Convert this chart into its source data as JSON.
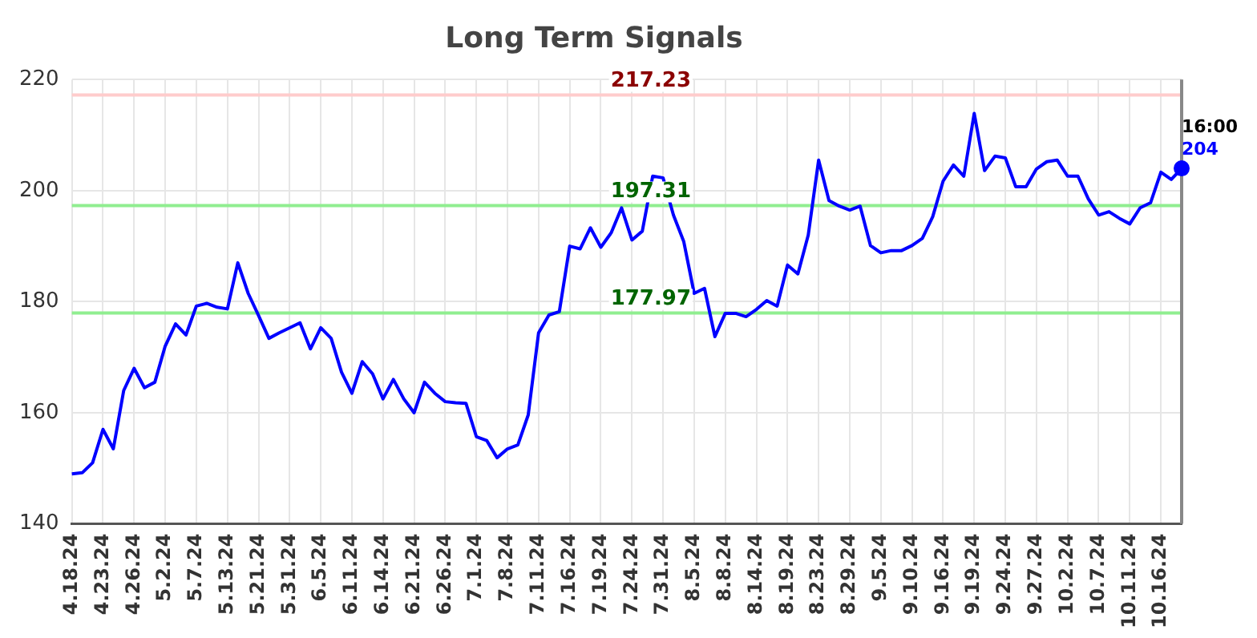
{
  "chart_data": {
    "type": "line",
    "title": "Long Term Signals",
    "categories": [
      "4.18.24",
      null,
      null,
      "4.23.24",
      null,
      null,
      "4.26.24",
      null,
      null,
      "5.2.24",
      null,
      null,
      "5.7.24",
      null,
      null,
      "5.13.24",
      null,
      null,
      "5.21.24",
      null,
      null,
      "5.31.24",
      null,
      null,
      "6.5.24",
      null,
      null,
      "6.11.24",
      null,
      null,
      "6.14.24",
      null,
      null,
      "6.21.24",
      null,
      null,
      "6.26.24",
      null,
      null,
      "7.1.24",
      null,
      null,
      "7.8.24",
      null,
      null,
      "7.11.24",
      null,
      null,
      "7.16.24",
      null,
      null,
      "7.19.24",
      null,
      null,
      "7.24.24",
      null,
      null,
      "7.31.24",
      null,
      null,
      "8.5.24",
      null,
      null,
      "8.8.24",
      null,
      null,
      "8.14.24",
      null,
      null,
      "8.19.24",
      null,
      null,
      "8.23.24",
      null,
      null,
      "8.29.24",
      null,
      null,
      "9.5.24",
      null,
      null,
      "9.10.24",
      null,
      null,
      "9.16.24",
      null,
      null,
      "9.19.24",
      null,
      null,
      "9.24.24",
      null,
      null,
      "9.27.24",
      null,
      null,
      "10.2.24",
      null,
      null,
      "10.7.24",
      null,
      null,
      "10.11.24",
      null,
      null,
      "10.16.24",
      null,
      null
    ],
    "series": [
      {
        "color": "#0000ff",
        "values": [
          149,
          149.2,
          151,
          157,
          153.5,
          164,
          168,
          164.5,
          165.5,
          172,
          176,
          174,
          179.2,
          179.7,
          179,
          178.7,
          187,
          181.5,
          177.5,
          173.4,
          174.4,
          175.3,
          176.2,
          171.5,
          175.3,
          173.4,
          167.3,
          163.5,
          169.2,
          167,
          162.5,
          166,
          162.5,
          160,
          165.5,
          163.5,
          162,
          161.8,
          161.7,
          155.7,
          155,
          151.9,
          153.5,
          154.2,
          159.6,
          174.4,
          177.6,
          178.2,
          190,
          189.5,
          193.3,
          189.8,
          192.4,
          196.9,
          191.1,
          192.7,
          202.6,
          202.3,
          195.6,
          190.8,
          181.5,
          182.4,
          173.7,
          177.9,
          177.9,
          177.3,
          178.6,
          180.2,
          179.2,
          186.6,
          185,
          192,
          205.5,
          198.2,
          197.2,
          196.5,
          197.2,
          190.1,
          188.8,
          189.2,
          189.2,
          190.1,
          191.4,
          195.3,
          201.7,
          204.6,
          202.6,
          213.9,
          203.6,
          206.2,
          205.9,
          200.7,
          200.7,
          203.9,
          205.2,
          205.5,
          202.6,
          202.6,
          198.5,
          195.6,
          196.2,
          195,
          194,
          196.9,
          197.8,
          203.3,
          202,
          204
        ],
        "value_labels": [
          null,
          null,
          null,
          null,
          null,
          null,
          null,
          null,
          null,
          null,
          null,
          null,
          null,
          null,
          null,
          null,
          null,
          null,
          null,
          null,
          null,
          null,
          null,
          null,
          null,
          null,
          null,
          null,
          null,
          null,
          null,
          null,
          null,
          null,
          null,
          null,
          null,
          null,
          null,
          null,
          null,
          null,
          null,
          null,
          null,
          null,
          null,
          null,
          null,
          null,
          null,
          null,
          null,
          null,
          null,
          null,
          null,
          null,
          null,
          null,
          null,
          null,
          null,
          null,
          null,
          null,
          null,
          null,
          null,
          null,
          null,
          null,
          null,
          null,
          null,
          null,
          null,
          null,
          null,
          null,
          null,
          null,
          null,
          null,
          null,
          null,
          null,
          null,
          null,
          null,
          null,
          null,
          null,
          null,
          null,
          null,
          null,
          null,
          null,
          null,
          null,
          null,
          null,
          null,
          null,
          null,
          null,
          "204"
        ]
      }
    ],
    "ylim": [
      140,
      220
    ],
    "yticks": [
      140,
      160,
      180,
      200,
      220
    ],
    "grid": true,
    "legend": false,
    "marker": "none",
    "line_style": "solid",
    "ref_lines": [
      {
        "axis": "y",
        "value": 217.23,
        "label": "217.23",
        "color": "#ffcccc"
      },
      {
        "axis": "y",
        "value": 197.31,
        "label": "197.31",
        "color": "#90ee90"
      },
      {
        "axis": "y",
        "value": 177.97,
        "label": "177.97",
        "color": "#90ee90"
      }
    ],
    "annotations": [
      "16:00"
    ]
  }
}
